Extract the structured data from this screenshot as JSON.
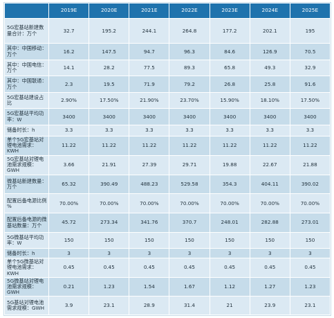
{
  "table": {
    "corner": "",
    "headers": [
      "2019E",
      "2020E",
      "2021E",
      "2022E",
      "2023E",
      "2024E",
      "2025E"
    ],
    "rows": [
      {
        "label": "5G宏基站新建数量合计：万个",
        "values": [
          "32.7",
          "195.2",
          "244.1",
          "264.8",
          "177.2",
          "202.1",
          "195"
        ]
      },
      {
        "label": "其中：中国移动：万个",
        "values": [
          "16.2",
          "147.5",
          "94.7",
          "96.3",
          "84.6",
          "126.9",
          "70.5"
        ]
      },
      {
        "label": "其中：中国电信：万个",
        "values": [
          "14.1",
          "28.2",
          "77.5",
          "89.3",
          "65.8",
          "49.3",
          "32.9"
        ]
      },
      {
        "label": "其中：中国联通：万个",
        "values": [
          "2.3",
          "19.5",
          "71.9",
          "79.2",
          "26.8",
          "25.8",
          "91.6"
        ]
      },
      {
        "label": "5G宏基站建设占比",
        "values": [
          "2.90%",
          "17.50%",
          "21.90%",
          "23.70%",
          "15.90%",
          "18.10%",
          "17.50%"
        ]
      },
      {
        "label": "5G宏基站平均功率：W",
        "values": [
          "3400",
          "3400",
          "3400",
          "3400",
          "3400",
          "3400",
          "3400"
        ]
      },
      {
        "label": "储备时长：h",
        "values": [
          "3.3",
          "3.3",
          "3.3",
          "3.3",
          "3.3",
          "3.3",
          "3.3"
        ]
      },
      {
        "label": "单个5G宏基站对锂电池需求：KWH",
        "values": [
          "11.22",
          "11.22",
          "11.22",
          "11.22",
          "11.22",
          "11.22",
          "11.22"
        ]
      },
      {
        "label": "5G宏基站对锂电池需求规模：GWH",
        "values": [
          "3.66",
          "21.91",
          "27.39",
          "29.71",
          "19.88",
          "22.67",
          "21.88"
        ]
      },
      {
        "label": "微基站新建数量：万个",
        "values": [
          "65.32",
          "390.49",
          "488.23",
          "529.58",
          "354.3",
          "404.11",
          "390.02"
        ]
      },
      {
        "label": "配置后备电源比例 %",
        "values": [
          "70.00%",
          "70.00%",
          "70.00%",
          "70.00%",
          "70.00%",
          "70.00%",
          "70.00%"
        ]
      },
      {
        "label": "配置后备电源的微基站数量：万个",
        "values": [
          "45.72",
          "273.34",
          "341.76",
          "370.7",
          "248.01",
          "282.88",
          "273.01"
        ]
      },
      {
        "label": "5G微基站平均功率：W",
        "values": [
          "150",
          "150",
          "150",
          "150",
          "150",
          "150",
          "150"
        ]
      },
      {
        "label": "储备时长：h",
        "values": [
          "3",
          "3",
          "3",
          "3",
          "3",
          "3",
          "3"
        ]
      },
      {
        "label": "单个5G微基站对锂电池需求：KWH",
        "values": [
          "0.45",
          "0.45",
          "0.45",
          "0.45",
          "0.45",
          "0.45",
          "0.45"
        ]
      },
      {
        "label": "5G微基站对锂电池需求规模：GWH",
        "values": [
          "0.21",
          "1.23",
          "1.54",
          "1.67",
          "1.12",
          "1.27",
          "1.23"
        ]
      },
      {
        "label": "5G基站对锂电池需求规模：GWH",
        "values": [
          "3.9",
          "23.1",
          "28.9",
          "31.4",
          "21",
          "23.9",
          "23.1"
        ]
      }
    ]
  },
  "colors": {
    "header_bg": "#1f73ad",
    "header_text": "#ffffff",
    "row_light": "#dbe9f3",
    "row_alt": "#c6dcea"
  }
}
